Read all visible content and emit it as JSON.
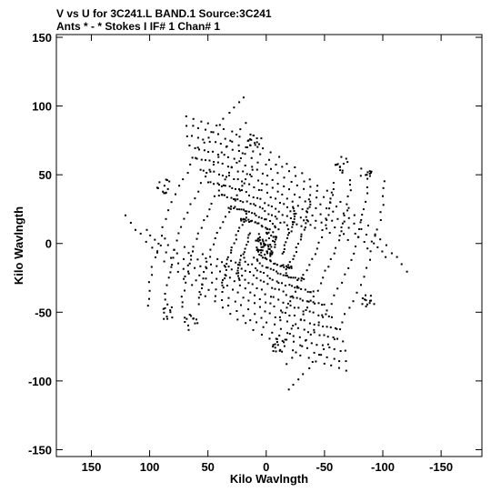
{
  "header": {
    "title_line1": "V vs U for 3C241.L BAND.1   Source:3C241",
    "title_line2": "Ants * - *      Stokes I  IF# 1  Chan# 1"
  },
  "chart_data": {
    "type": "scatter",
    "title": "V vs U for 3C241.L BAND.1   Source:3C241",
    "subtitle": "Ants * - *      Stokes I  IF# 1  Chan# 1",
    "xlabel": "Kilo Wavlngth",
    "ylabel": "Kilo Wavlngth",
    "xlim": [
      180,
      -185
    ],
    "ylim": [
      -155,
      152
    ],
    "x_reversed": true,
    "xticks": [
      150,
      100,
      50,
      0,
      -50,
      -100,
      -150
    ],
    "yticks": [
      150,
      100,
      50,
      0,
      -50,
      -100,
      -150
    ],
    "grid": false,
    "legend": "none",
    "marker_color": "#000000",
    "tracks": [
      {
        "ra": 30,
        "rb": 10,
        "phi0": 55,
        "spread": 70,
        "n": 22
      },
      {
        "ra": 45,
        "rb": 15,
        "phi0": 60,
        "spread": 70,
        "n": 24
      },
      {
        "ra": 60,
        "rb": 20,
        "phi0": 65,
        "spread": 72,
        "n": 26
      },
      {
        "ra": 75,
        "rb": 26,
        "phi0": 68,
        "spread": 74,
        "n": 28
      },
      {
        "ra": 90,
        "rb": 32,
        "phi0": 72,
        "spread": 76,
        "n": 30
      },
      {
        "ra": 105,
        "rb": 38,
        "phi0": 75,
        "spread": 78,
        "n": 30
      },
      {
        "ra": 120,
        "rb": 44,
        "phi0": 80,
        "spread": 80,
        "n": 32
      },
      {
        "ra": 135,
        "rb": 50,
        "phi0": 84,
        "spread": 82,
        "n": 32
      },
      {
        "ra": 150,
        "rb": 55,
        "phi0": 88,
        "spread": 82,
        "n": 32
      },
      {
        "ra": 165,
        "rb": 60,
        "phi0": 92,
        "spread": 84,
        "n": 32
      },
      {
        "ra": 40,
        "rb": 95,
        "phi0": 170,
        "spread": 70,
        "n": 26
      },
      {
        "ra": 55,
        "rb": 110,
        "phi0": 172,
        "spread": 72,
        "n": 28
      },
      {
        "ra": 70,
        "rb": 125,
        "phi0": 175,
        "spread": 74,
        "n": 28
      },
      {
        "ra": 85,
        "rb": 140,
        "phi0": 178,
        "spread": 76,
        "n": 30
      },
      {
        "ra": 25,
        "rb": 60,
        "phi0": 160,
        "spread": 60,
        "n": 22
      },
      {
        "ra": 15,
        "rb": 40,
        "phi0": 150,
        "spread": 60,
        "n": 18
      }
    ],
    "clusters": [
      {
        "x": 0,
        "y": 0,
        "r": 10,
        "n": 60
      },
      {
        "x": 10,
        "y": 75,
        "r": 6,
        "n": 14
      },
      {
        "x": -10,
        "y": -75,
        "r": 6,
        "n": 14
      },
      {
        "x": 88,
        "y": 42,
        "r": 6,
        "n": 12
      },
      {
        "x": -88,
        "y": -42,
        "r": 6,
        "n": 12
      },
      {
        "x": -65,
        "y": 58,
        "r": 7,
        "n": 12
      },
      {
        "x": 65,
        "y": -58,
        "r": 7,
        "n": 12
      },
      {
        "x": -85,
        "y": 50,
        "r": 6,
        "n": 10
      },
      {
        "x": 85,
        "y": -50,
        "r": 6,
        "n": 10
      }
    ]
  }
}
